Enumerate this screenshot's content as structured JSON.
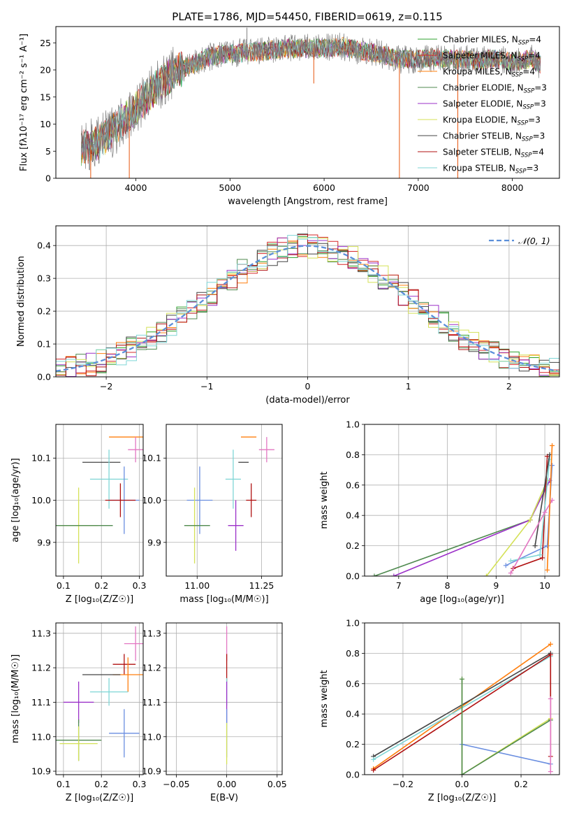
{
  "figure_title": "PLATE=1786, MJD=54450, FIBERID=0619, z=0.115",
  "colors": {
    "chabrier_miles": "#2ca02c",
    "salpeter_miles": "#d62728",
    "kroupa_miles": "#ff7f0e",
    "chabrier_elodie": "#4f8a4f",
    "salpeter_elodie": "#9b30c8",
    "kroupa_elodie": "#d4e157",
    "chabrier_stelib": "#444444",
    "salpeter_stelib": "#b01010",
    "kroupa_stelib": "#7fd6d6",
    "extra_pink": "#e377c2",
    "extra_blue": "#6a8ee0",
    "gaussian": "#5b8fd9",
    "spectrum_gray": "#808080"
  },
  "chart_data": [
    {
      "id": "spectrum",
      "type": "line",
      "title": "PLATE=1786, MJD=54450, FIBERID=0619, z=0.115",
      "xlabel": "wavelength [Angstrom, rest frame]",
      "ylabel": "Flux [fλ10⁻¹⁷ erg cm⁻² s⁻¹ A⁻¹]",
      "xlim": [
        3150,
        8500
      ],
      "ylim": [
        0,
        28
      ],
      "xticks": [
        4000,
        5000,
        6000,
        7000,
        8000
      ],
      "yticks": [
        0,
        5,
        10,
        15,
        20,
        25
      ],
      "grid": false,
      "legend_position": "right",
      "legend": [
        {
          "label": "Chabrier MILES, N",
          "sub": "SSP",
          "suffix": "=4",
          "color_key": "chabrier_miles"
        },
        {
          "label": "Salpeter MILES, N",
          "sub": "SSP",
          "suffix": "=4",
          "color_key": "salpeter_miles"
        },
        {
          "label": "Kroupa MILES, N",
          "sub": "SSP",
          "suffix": "=4",
          "color_key": "kroupa_miles"
        },
        {
          "label": "Chabrier ELODIE, N",
          "sub": "SSP",
          "suffix": "=3",
          "color_key": "chabrier_elodie"
        },
        {
          "label": "Salpeter ELODIE, N",
          "sub": "SSP",
          "suffix": "=3",
          "color_key": "salpeter_elodie"
        },
        {
          "label": "Kroupa ELODIE, N",
          "sub": "SSP",
          "suffix": "=3",
          "color_key": "kroupa_elodie"
        },
        {
          "label": "Chabrier STELIB, N",
          "sub": "SSP",
          "suffix": "=3",
          "color_key": "chabrier_stelib"
        },
        {
          "label": "Salpeter STELIB, N",
          "sub": "SSP",
          "suffix": "=4",
          "color_key": "salpeter_stelib"
        },
        {
          "label": "Kroupa STELIB, N",
          "sub": "SSP",
          "suffix": "=3",
          "color_key": "kroupa_stelib"
        }
      ],
      "continuum": {
        "x": [
          3400,
          3600,
          3800,
          3900,
          4000,
          4200,
          4400,
          4600,
          4800,
          5000,
          5200,
          5400,
          5600,
          5800,
          6000,
          6200,
          6400,
          6600,
          6800,
          7000,
          7200,
          7400,
          7600,
          7800,
          8000,
          8200,
          8300
        ],
        "y": [
          5.5,
          6.5,
          9.5,
          11.5,
          13,
          16.5,
          19.5,
          21,
          22.5,
          23,
          23.3,
          23.5,
          24,
          24,
          24,
          24.3,
          23.5,
          23,
          22,
          22,
          22.3,
          22,
          21.8,
          22,
          21.5,
          22,
          21
        ]
      },
      "artifacts": [
        {
          "x": 3520,
          "y": 0
        },
        {
          "x": 3930,
          "y": 0
        },
        {
          "x": 5180,
          "y": 27.8
        },
        {
          "x": 5890,
          "y": 17.5
        },
        {
          "x": 6800,
          "y": 0
        },
        {
          "x": 7420,
          "y": 0
        }
      ]
    },
    {
      "id": "residuals",
      "type": "histogram",
      "xlabel": "(data-model)/error",
      "ylabel": "Normed distribution",
      "xlim": [
        -2.5,
        2.5
      ],
      "ylim": [
        0,
        0.46
      ],
      "xticks": [
        -2,
        -1,
        0,
        1,
        2
      ],
      "xticklabels": [
        "−2",
        "−1",
        "0",
        "1",
        "2"
      ],
      "yticks": [
        0,
        0.1,
        0.2,
        0.3,
        0.4
      ],
      "yticklabels": [
        "0.0",
        "0.1",
        "0.2",
        "0.3",
        "0.4"
      ],
      "grid": true,
      "bin_width": 0.1,
      "legend": [
        {
          "label": "𝒩(0, 1)",
          "color_key": "gaussian",
          "style": "dashed"
        }
      ],
      "series_colors": [
        "chabrier_miles",
        "salpeter_miles",
        "kroupa_miles",
        "chabrier_elodie",
        "salpeter_elodie",
        "kroupa_elodie",
        "chabrier_stelib",
        "salpeter_stelib",
        "kroupa_stelib"
      ]
    },
    {
      "id": "age_vs_Z",
      "type": "errorbar",
      "xlabel": "Z [log₁₀(Z/Z☉)]",
      "ylabel": "age  [log₁₀(age/yr)]",
      "xlim": [
        0.08,
        0.31
      ],
      "ylim": [
        9.82,
        10.18
      ],
      "xticks": [
        0.1,
        0.2,
        0.3
      ],
      "yticks": [
        9.9,
        10.0,
        10.1
      ],
      "yticklabels": [
        "9.9",
        "10.0",
        "10.1"
      ],
      "grid": true,
      "points": [
        {
          "x": 0.27,
          "y": 10.15,
          "xerr": 0.05,
          "yerr": 0.0,
          "color_key": "kroupa_miles"
        },
        {
          "x": 0.29,
          "y": 10.12,
          "xerr": 0.02,
          "yerr": 0.03,
          "color_key": "extra_pink"
        },
        {
          "x": 0.2,
          "y": 10.09,
          "xerr": 0.05,
          "yerr": 0.0,
          "color_key": "chabrier_stelib"
        },
        {
          "x": 0.22,
          "y": 10.05,
          "xerr": 0.05,
          "yerr": 0.07,
          "color_key": "kroupa_stelib"
        },
        {
          "x": 0.26,
          "y": 10.0,
          "xerr": 0.04,
          "yerr": 0.08,
          "color_key": "extra_blue"
        },
        {
          "x": 0.25,
          "y": 10.0,
          "xerr": 0.04,
          "yerr": 0.04,
          "color_key": "salpeter_stelib"
        },
        {
          "x": 0.14,
          "y": 9.94,
          "xerr": 0.05,
          "yerr": 0.09,
          "color_key": "kroupa_elodie"
        },
        {
          "x": 0.15,
          "y": 9.94,
          "xerr": 0.08,
          "yerr": 0.0,
          "color_key": "chabrier_elodie"
        }
      ]
    },
    {
      "id": "age_vs_mass",
      "type": "errorbar",
      "xlabel": "mass [log₁₀(M/M☉)]",
      "ylabel": "",
      "xlim": [
        10.88,
        11.33
      ],
      "ylim": [
        9.82,
        10.18
      ],
      "xticks": [
        11.0,
        11.25
      ],
      "xticklabels": [
        "11.00",
        "11.25"
      ],
      "yticks": [
        9.9,
        10.0,
        10.1
      ],
      "yticklabels": [
        "9.9",
        "10.0",
        "10.1"
      ],
      "grid": true,
      "points": [
        {
          "x": 11.2,
          "y": 10.15,
          "xerr": 0.03,
          "yerr": 0.0,
          "color_key": "kroupa_miles"
        },
        {
          "x": 11.27,
          "y": 10.12,
          "xerr": 0.03,
          "yerr": 0.03,
          "color_key": "extra_pink"
        },
        {
          "x": 11.18,
          "y": 10.09,
          "xerr": 0.02,
          "yerr": 0.0,
          "color_key": "chabrier_stelib"
        },
        {
          "x": 11.14,
          "y": 10.05,
          "xerr": 0.03,
          "yerr": 0.07,
          "color_key": "kroupa_stelib"
        },
        {
          "x": 11.01,
          "y": 10.0,
          "xerr": 0.05,
          "yerr": 0.08,
          "color_key": "extra_blue"
        },
        {
          "x": 11.21,
          "y": 10.0,
          "xerr": 0.02,
          "yerr": 0.04,
          "color_key": "salpeter_stelib"
        },
        {
          "x": 10.99,
          "y": 9.94,
          "xerr": 0.03,
          "yerr": 0.09,
          "color_key": "kroupa_elodie"
        },
        {
          "x": 11.15,
          "y": 9.94,
          "xerr": 0.03,
          "yerr": 0.06,
          "color_key": "salpeter_elodie"
        },
        {
          "x": 11.0,
          "y": 9.94,
          "xerr": 0.05,
          "yerr": 0.0,
          "color_key": "chabrier_elodie"
        }
      ]
    },
    {
      "id": "weight_vs_age",
      "type": "line",
      "xlabel": "age  [log₁₀(age/yr)]",
      "ylabel": "mass weight",
      "xlim": [
        6.3,
        10.3
      ],
      "ylim": [
        0,
        1.0
      ],
      "xticks": [
        7,
        8,
        9,
        10
      ],
      "yticks": [
        0,
        0.2,
        0.4,
        0.6,
        0.8,
        1.0
      ],
      "yticklabels": [
        "0.0",
        "0.2",
        "0.4",
        "0.6",
        "0.8",
        "1.0"
      ],
      "grid": true,
      "series": [
        {
          "color_key": "chabrier_elodie",
          "x": [
            6.5,
            9.7,
            10.05
          ],
          "y": [
            0.0,
            0.37,
            0.63
          ]
        },
        {
          "color_key": "salpeter_elodie",
          "x": [
            6.9,
            9.7,
            10.1
          ],
          "y": [
            0.0,
            0.37,
            0.63
          ]
        },
        {
          "color_key": "kroupa_elodie",
          "x": [
            8.8,
            9.7,
            10.05
          ],
          "y": [
            0.0,
            0.37,
            0.63
          ]
        },
        {
          "color_key": "extra_blue",
          "x": [
            9.2,
            10.05,
            10.15
          ],
          "y": [
            0.07,
            0.2,
            0.73
          ]
        },
        {
          "color_key": "salpeter_stelib",
          "x": [
            9.35,
            9.95,
            10.05
          ],
          "y": [
            0.05,
            0.12,
            0.79
          ]
        },
        {
          "color_key": "kroupa_stelib",
          "x": [
            9.3,
            9.9,
            10.1
          ],
          "y": [
            0.1,
            0.14,
            0.77
          ]
        },
        {
          "color_key": "chabrier_stelib",
          "x": [
            9.8,
            10.1
          ],
          "y": [
            0.2,
            0.8
          ]
        },
        {
          "color_key": "extra_pink",
          "x": [
            9.3,
            10.0,
            10.15
          ],
          "y": [
            0.02,
            0.42,
            0.5
          ]
        },
        {
          "color_key": "kroupa_miles",
          "x": [
            10.05,
            10.15
          ],
          "y": [
            0.04,
            0.86
          ]
        }
      ]
    },
    {
      "id": "mass_vs_Z",
      "type": "errorbar",
      "xlabel": "Z [log₁₀(Z/Z☉)]",
      "ylabel": "mass [log₁₀(M/M☉)]",
      "xlim": [
        0.08,
        0.31
      ],
      "ylim": [
        10.89,
        11.33
      ],
      "xticks": [
        0.1,
        0.2,
        0.3
      ],
      "yticks": [
        10.9,
        11.0,
        11.1,
        11.2,
        11.3
      ],
      "yticklabels": [
        "10.9",
        "11.0",
        "11.1",
        "11.2",
        "11.3"
      ],
      "grid": true,
      "points": [
        {
          "x": 0.29,
          "y": 11.27,
          "xerr": 0.03,
          "yerr": 0.05,
          "color_key": "extra_pink"
        },
        {
          "x": 0.26,
          "y": 11.21,
          "xerr": 0.03,
          "yerr": 0.03,
          "color_key": "salpeter_stelib"
        },
        {
          "x": 0.27,
          "y": 11.18,
          "xerr": 0.04,
          "yerr": 0.05,
          "color_key": "kroupa_miles"
        },
        {
          "x": 0.2,
          "y": 11.18,
          "xerr": 0.05,
          "yerr": 0.0,
          "color_key": "chabrier_stelib"
        },
        {
          "x": 0.22,
          "y": 11.13,
          "xerr": 0.05,
          "yerr": 0.04,
          "color_key": "kroupa_stelib"
        },
        {
          "x": 0.14,
          "y": 11.1,
          "xerr": 0.04,
          "yerr": 0.06,
          "color_key": "salpeter_elodie"
        },
        {
          "x": 0.26,
          "y": 11.01,
          "xerr": 0.04,
          "yerr": 0.07,
          "color_key": "extra_blue"
        },
        {
          "x": 0.14,
          "y": 10.99,
          "xerr": 0.06,
          "yerr": 0.06,
          "color_key": "chabrier_elodie"
        },
        {
          "x": 0.14,
          "y": 10.98,
          "xerr": 0.05,
          "yerr": 0.05,
          "color_key": "kroupa_elodie"
        }
      ]
    },
    {
      "id": "mass_vs_ebv",
      "type": "errorbar",
      "xlabel": "E(B-V)",
      "ylabel": "",
      "xlim": [
        -0.06,
        0.055
      ],
      "ylim": [
        10.89,
        11.33
      ],
      "xticks": [
        -0.05,
        0.0,
        0.05
      ],
      "xticklabels": [
        "−0.05",
        "0.00",
        "0.05"
      ],
      "yticks": [
        10.9,
        11.0,
        11.1,
        11.2,
        11.3
      ],
      "yticklabels": [
        "10.9",
        "11.0",
        "11.1",
        "11.2",
        "11.3"
      ],
      "grid": true,
      "points": [
        {
          "x": 0.0,
          "y": 11.27,
          "xerr": 0.0,
          "yerr": 0.05,
          "color_key": "extra_pink"
        },
        {
          "x": 0.0,
          "y": 11.2,
          "xerr": 0.0,
          "yerr": 0.04,
          "color_key": "salpeter_stelib"
        },
        {
          "x": 0.0,
          "y": 11.13,
          "xerr": 0.0,
          "yerr": 0.04,
          "color_key": "kroupa_stelib"
        },
        {
          "x": 0.0,
          "y": 11.1,
          "xerr": 0.0,
          "yerr": 0.06,
          "color_key": "salpeter_elodie"
        },
        {
          "x": 0.0,
          "y": 11.01,
          "xerr": 0.0,
          "yerr": 0.07,
          "color_key": "extra_blue"
        },
        {
          "x": 0.0,
          "y": 10.98,
          "xerr": 0.0,
          "yerr": 0.06,
          "color_key": "kroupa_elodie"
        }
      ]
    },
    {
      "id": "weight_vs_Z",
      "type": "line",
      "xlabel": "Z [log₁₀(Z/Z☉)]",
      "ylabel": "mass weight",
      "xlim": [
        -0.33,
        0.33
      ],
      "ylim": [
        0,
        1.0
      ],
      "xticks": [
        -0.2,
        0.0,
        0.2
      ],
      "xticklabels": [
        "−0.2",
        "0.0",
        "0.2"
      ],
      "yticks": [
        0,
        0.2,
        0.4,
        0.6,
        0.8,
        1.0
      ],
      "yticklabels": [
        "0.0",
        "0.2",
        "0.4",
        "0.6",
        "0.8",
        "1.0"
      ],
      "grid": true,
      "series": [
        {
          "color_key": "kroupa_miles",
          "x": [
            -0.3,
            0.3
          ],
          "y": [
            0.04,
            0.86
          ]
        },
        {
          "color_key": "chabrier_stelib",
          "x": [
            -0.3,
            0.3
          ],
          "y": [
            0.12,
            0.8
          ]
        },
        {
          "color_key": "kroupa_stelib",
          "x": [
            -0.3,
            0.3
          ],
          "y": [
            0.1,
            0.78
          ]
        },
        {
          "color_key": "salpeter_stelib",
          "x": [
            -0.3,
            0.3,
            0.3
          ],
          "y": [
            0.03,
            0.79,
            0.12
          ]
        },
        {
          "color_key": "extra_blue",
          "x": [
            0.0,
            0.3
          ],
          "y": [
            0.2,
            0.07
          ]
        },
        {
          "color_key": "kroupa_elodie",
          "x": [
            0.0,
            0.0,
            0.3
          ],
          "y": [
            0.63,
            0.0,
            0.37
          ]
        },
        {
          "color_key": "chabrier_elodie",
          "x": [
            0.0,
            0.0,
            0.3
          ],
          "y": [
            0.63,
            0.0,
            0.36
          ]
        },
        {
          "color_key": "extra_pink",
          "x": [
            0.3,
            0.3
          ],
          "y": [
            0.02,
            0.5
          ]
        }
      ]
    }
  ]
}
